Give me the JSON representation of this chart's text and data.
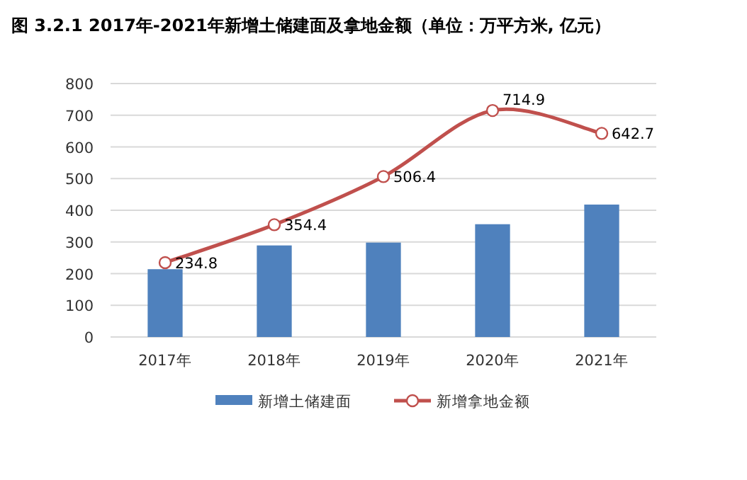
{
  "chart_data": {
    "type": "bar",
    "title": "图 3.2.1  2017年-2021年新增土储建面及拿地金额（单位：万平方米, 亿元）",
    "categories": [
      "2017年",
      "2018年",
      "2019年",
      "2020年",
      "2021年"
    ],
    "series": [
      {
        "name": "新增土储建面",
        "color": "#4f81bd",
        "values": [
          214,
          289,
          298,
          356,
          418
        ]
      },
      {
        "name": "新增拿地金额",
        "type": "line",
        "color": "#c0504d",
        "values": [
          234.8,
          354.4,
          506.4,
          714.9,
          642.7
        ],
        "value_labels": [
          "234.8",
          "354.4",
          "506.4",
          "714.9",
          "642.7"
        ]
      }
    ],
    "ylim": [
      0,
      800
    ],
    "yticks": [
      0,
      100,
      200,
      300,
      400,
      500,
      600,
      700,
      800
    ],
    "grid": "y",
    "legend": "bottom",
    "marker": "circle"
  }
}
